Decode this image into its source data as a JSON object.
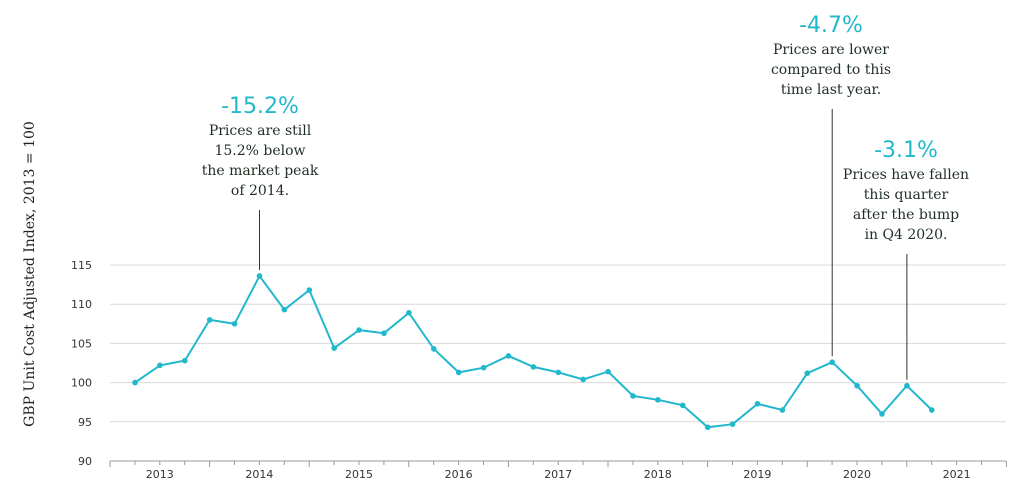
{
  "chart_data": {
    "type": "line",
    "ylabel": "GBP Unit Cost Adjusted Index, 2013 = 100",
    "ylim": [
      90,
      115
    ],
    "yticks": [
      90,
      95,
      100,
      105,
      110,
      115
    ],
    "grid": true,
    "year_labels": [
      "2013",
      "2014",
      "2015",
      "2016",
      "2017",
      "2018",
      "2019",
      "2020",
      "2021"
    ],
    "series": [
      {
        "color": "#22b8cc",
        "values": [
          100.0,
          102.2,
          102.8,
          108.0,
          107.5,
          113.6,
          109.3,
          111.8,
          104.4,
          106.7,
          106.3,
          108.9,
          104.3,
          101.3,
          101.9,
          103.4,
          102.0,
          101.3,
          100.4,
          101.4,
          98.3,
          97.8,
          97.1,
          94.3,
          94.7,
          97.3,
          96.5,
          101.2,
          102.6,
          99.6,
          96.0,
          99.6,
          96.5
        ]
      }
    ],
    "annotations": [
      {
        "value": "-15.2%",
        "lines": [
          "Prices are still",
          "15.2% below",
          "the market peak",
          "of 2014."
        ],
        "point_index": 5
      },
      {
        "value": "-4.7%",
        "lines": [
          "Prices are lower",
          "compared to this",
          "time last year."
        ],
        "point_index": 28
      },
      {
        "value": "-3.1%",
        "lines": [
          "Prices have fallen",
          "this quarter",
          "after the bump",
          "in Q4 2020."
        ],
        "point_index": 31
      }
    ]
  },
  "colors": {
    "line": "#22b8cc",
    "annotation_value": "#22b8cc",
    "annotation_text": "#1f2f24",
    "grid": "#d9d9d9",
    "axis": "#999999"
  }
}
